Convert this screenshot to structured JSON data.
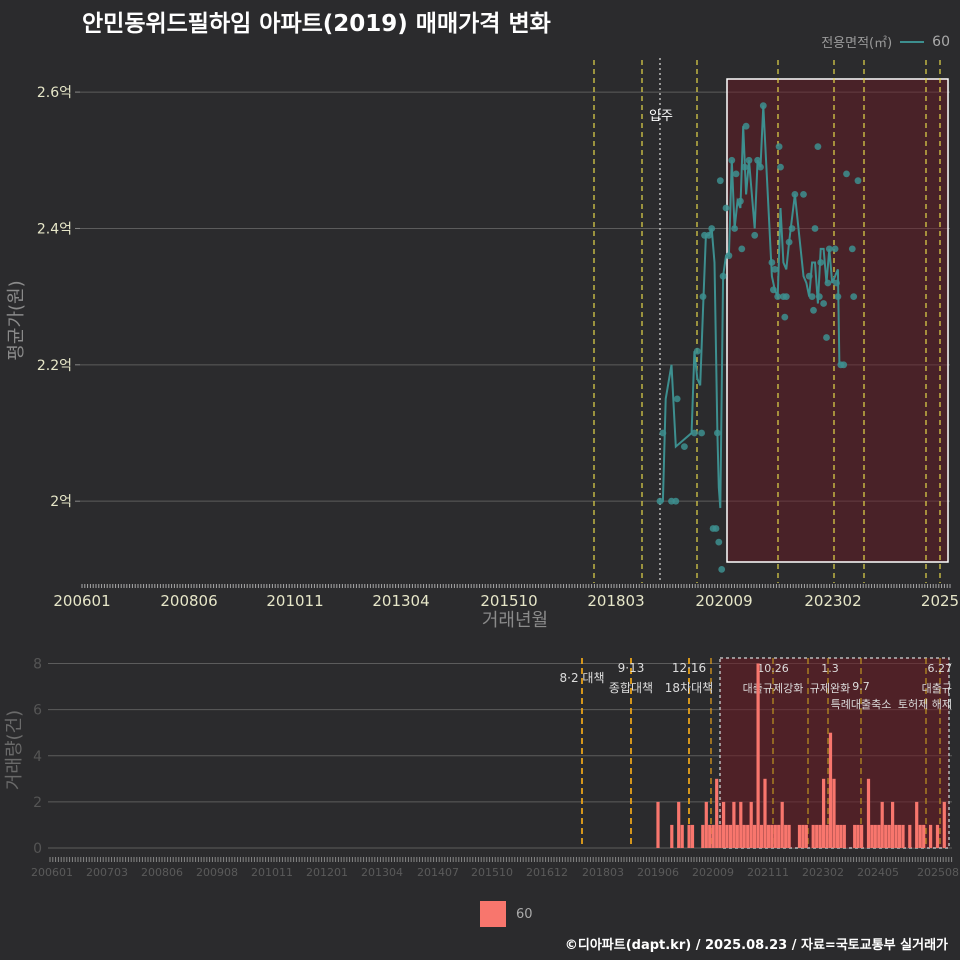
{
  "title": "안민동위드필하임 아파트(2019) 매매가격 변화",
  "legend": {
    "title": "전용면적(㎡)",
    "series": "60",
    "line_color": "#3d8f8f",
    "bar_color": "#f8766d"
  },
  "footer": "©디아파트(dapt.kr) / 2025.08.23 / 자료=국토교통부 실거래가",
  "chart_data": [
    {
      "type": "line",
      "ylabel": "평균가(원)",
      "xlabel": "거래년월",
      "yticks": [
        {
          "v": 2.0,
          "label": "2억"
        },
        {
          "v": 2.2,
          "label": "2.2억"
        },
        {
          "v": 2.4,
          "label": "2.4억"
        },
        {
          "v": 2.6,
          "label": "2.6억"
        }
      ],
      "ylim": [
        1.88,
        2.65
      ],
      "xticks": [
        "200601",
        "200806",
        "201011",
        "201304",
        "201510",
        "201803",
        "202009",
        "202302",
        "2025"
      ],
      "annotation": "입주",
      "series": [
        {
          "name": "60",
          "line": [
            [
              2019.45,
              2.0
            ],
            [
              2019.6,
              2.0
            ],
            [
              2019.7,
              2.15
            ],
            [
              2019.9,
              2.2
            ],
            [
              2020.05,
              2.08
            ],
            [
              2020.6,
              2.1
            ],
            [
              2020.7,
              2.22
            ],
            [
              2020.8,
              2.18
            ],
            [
              2020.9,
              2.17
            ],
            [
              2021.0,
              2.28
            ],
            [
              2021.1,
              2.39
            ],
            [
              2021.2,
              2.39
            ],
            [
              2021.3,
              2.4
            ],
            [
              2021.4,
              2.35
            ],
            [
              2021.5,
              2.1
            ],
            [
              2021.55,
              2.02
            ],
            [
              2021.6,
              1.99
            ],
            [
              2021.7,
              2.33
            ],
            [
              2021.8,
              2.36
            ],
            [
              2021.9,
              2.36
            ],
            [
              2022.0,
              2.5
            ],
            [
              2022.1,
              2.4
            ],
            [
              2022.2,
              2.44
            ],
            [
              2022.3,
              2.43
            ],
            [
              2022.4,
              2.55
            ],
            [
              2022.5,
              2.45
            ],
            [
              2022.6,
              2.5
            ],
            [
              2022.8,
              2.4
            ],
            [
              2022.9,
              2.5
            ],
            [
              2023.0,
              2.49
            ],
            [
              2023.1,
              2.58
            ],
            [
              2023.4,
              2.33
            ],
            [
              2023.5,
              2.31
            ],
            [
              2023.6,
              2.3
            ],
            [
              2023.7,
              2.43
            ],
            [
              2023.8,
              2.35
            ],
            [
              2023.9,
              2.34
            ],
            [
              2024.0,
              2.38
            ],
            [
              2024.2,
              2.45
            ],
            [
              2024.5,
              2.33
            ],
            [
              2024.6,
              2.32
            ],
            [
              2024.7,
              2.3
            ],
            [
              2024.8,
              2.35
            ],
            [
              2024.9,
              2.35
            ],
            [
              2025.0,
              2.29
            ],
            [
              2025.1,
              2.37
            ],
            [
              2025.2,
              2.37
            ],
            [
              2025.3,
              2.32
            ],
            [
              2025.4,
              2.37
            ],
            [
              2025.5,
              2.32
            ],
            [
              2025.7,
              2.34
            ],
            [
              2025.75,
              2.2
            ]
          ],
          "points": [
            [
              2019.5,
              2.0
            ],
            [
              2019.6,
              2.1
            ],
            [
              2019.9,
              2.0
            ],
            [
              2020.05,
              2.0
            ],
            [
              2020.1,
              2.15
            ],
            [
              2020.35,
              2.08
            ],
            [
              2020.7,
              2.1
            ],
            [
              2020.8,
              2.22
            ],
            [
              2020.95,
              2.1
            ],
            [
              2021.0,
              2.3
            ],
            [
              2021.05,
              2.39
            ],
            [
              2021.2,
              2.39
            ],
            [
              2021.3,
              2.4
            ],
            [
              2021.35,
              1.96
            ],
            [
              2021.45,
              1.96
            ],
            [
              2021.5,
              2.1
            ],
            [
              2021.55,
              1.94
            ],
            [
              2021.6,
              2.47
            ],
            [
              2021.65,
              1.9
            ],
            [
              2021.7,
              2.33
            ],
            [
              2021.8,
              2.43
            ],
            [
              2021.9,
              2.36
            ],
            [
              2022.0,
              2.5
            ],
            [
              2022.1,
              2.4
            ],
            [
              2022.15,
              2.48
            ],
            [
              2022.3,
              2.44
            ],
            [
              2022.35,
              2.37
            ],
            [
              2022.45,
              2.49
            ],
            [
              2022.5,
              2.55
            ],
            [
              2022.6,
              2.5
            ],
            [
              2022.8,
              2.39
            ],
            [
              2022.9,
              2.5
            ],
            [
              2023.0,
              2.49
            ],
            [
              2023.1,
              2.58
            ],
            [
              2023.4,
              2.35
            ],
            [
              2023.45,
              2.31
            ],
            [
              2023.5,
              2.34
            ],
            [
              2023.6,
              2.3
            ],
            [
              2023.65,
              2.52
            ],
            [
              2023.7,
              2.49
            ],
            [
              2023.8,
              2.3
            ],
            [
              2023.85,
              2.27
            ],
            [
              2023.9,
              2.3
            ],
            [
              2024.0,
              2.38
            ],
            [
              2024.1,
              2.4
            ],
            [
              2024.2,
              2.45
            ],
            [
              2024.5,
              2.45
            ],
            [
              2024.7,
              2.33
            ],
            [
              2024.8,
              2.3
            ],
            [
              2024.85,
              2.28
            ],
            [
              2024.9,
              2.4
            ],
            [
              2025.0,
              2.52
            ],
            [
              2025.05,
              2.3
            ],
            [
              2025.1,
              2.35
            ],
            [
              2025.2,
              2.29
            ],
            [
              2025.3,
              2.24
            ],
            [
              2025.35,
              2.32
            ],
            [
              2025.4,
              2.37
            ],
            [
              2025.6,
              2.37
            ],
            [
              2025.65,
              2.32
            ],
            [
              2025.7,
              2.3
            ],
            [
              2025.8,
              2.2
            ],
            [
              2025.9,
              2.2
            ],
            [
              2026.0,
              2.48
            ],
            [
              2026.2,
              2.37
            ],
            [
              2026.25,
              2.3
            ],
            [
              2026.4,
              2.47
            ]
          ]
        }
      ]
    },
    {
      "type": "bar",
      "ylabel": "거래량(건)",
      "yticks": [
        0,
        2,
        4,
        6,
        8
      ],
      "ylim": [
        0,
        8.5
      ],
      "xticks": [
        "200601",
        "200703",
        "200806",
        "200908",
        "201011",
        "201201",
        "201304",
        "201407",
        "201510",
        "201612",
        "201803",
        "201906",
        "202009",
        "202111",
        "202302",
        "202405",
        "202508"
      ],
      "events": [
        {
          "label": "8·2 대책",
          "sub": ""
        },
        {
          "label": "9·13",
          "sub": "종합대책"
        },
        {
          "label": "12·16",
          "sub": "18차대책"
        },
        {
          "label": "10.26",
          "sub": "대출규제강화"
        },
        {
          "label": "1.3",
          "sub": "규제완화"
        },
        {
          "label": "9.7",
          "sub": "특례대출축소"
        },
        {
          "label": "6.27",
          "sub": "대출규"
        },
        {
          "label": "",
          "sub": "토허제 해제"
        }
      ],
      "series": [
        {
          "name": "60",
          "values": [
            [
              2019.3,
              2
            ],
            [
              2019.7,
              1
            ],
            [
              2019.9,
              2
            ],
            [
              2020.0,
              1
            ],
            [
              2020.2,
              1
            ],
            [
              2020.3,
              1
            ],
            [
              2020.6,
              1
            ],
            [
              2020.7,
              2
            ],
            [
              2020.8,
              1
            ],
            [
              2020.9,
              1
            ],
            [
              2021.0,
              3
            ],
            [
              2021.1,
              1
            ],
            [
              2021.2,
              2
            ],
            [
              2021.3,
              1
            ],
            [
              2021.4,
              1
            ],
            [
              2021.5,
              2
            ],
            [
              2021.6,
              1
            ],
            [
              2021.7,
              2
            ],
            [
              2021.8,
              1
            ],
            [
              2021.9,
              1
            ],
            [
              2022.0,
              2
            ],
            [
              2022.1,
              1
            ],
            [
              2022.2,
              8
            ],
            [
              2022.3,
              1
            ],
            [
              2022.4,
              3
            ],
            [
              2022.5,
              1
            ],
            [
              2022.6,
              1
            ],
            [
              2022.7,
              1
            ],
            [
              2022.8,
              1
            ],
            [
              2022.9,
              2
            ],
            [
              2023.0,
              1
            ],
            [
              2023.1,
              1
            ],
            [
              2023.4,
              1
            ],
            [
              2023.5,
              1
            ],
            [
              2023.6,
              1
            ],
            [
              2023.8,
              1
            ],
            [
              2023.9,
              1
            ],
            [
              2024.0,
              1
            ],
            [
              2024.1,
              3
            ],
            [
              2024.2,
              1
            ],
            [
              2024.3,
              5
            ],
            [
              2024.4,
              3
            ],
            [
              2024.5,
              1
            ],
            [
              2024.6,
              1
            ],
            [
              2024.7,
              1
            ],
            [
              2025.0,
              1
            ],
            [
              2025.1,
              1
            ],
            [
              2025.2,
              1
            ],
            [
              2025.4,
              3
            ],
            [
              2025.5,
              1
            ],
            [
              2025.6,
              1
            ],
            [
              2025.7,
              1
            ],
            [
              2025.8,
              2
            ],
            [
              2025.9,
              1
            ],
            [
              2026.0,
              1
            ],
            [
              2026.1,
              2
            ],
            [
              2026.2,
              1
            ],
            [
              2026.3,
              1
            ],
            [
              2026.4,
              1
            ],
            [
              2026.6,
              1
            ],
            [
              2026.8,
              2
            ],
            [
              2026.9,
              1
            ],
            [
              2027.0,
              1
            ],
            [
              2027.2,
              1
            ],
            [
              2027.4,
              1
            ],
            [
              2027.6,
              2
            ],
            [
              2027.8,
              1
            ]
          ]
        }
      ]
    }
  ]
}
